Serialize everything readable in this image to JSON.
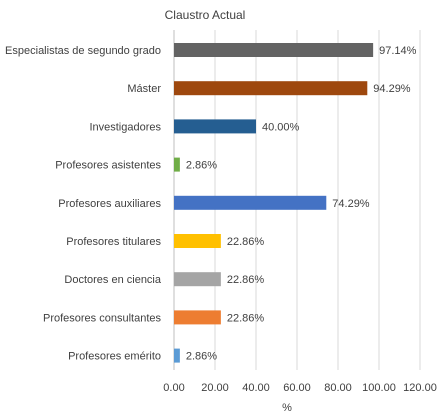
{
  "chart_data": {
    "type": "bar",
    "orientation": "horizontal",
    "title": "Claustro Actual",
    "xlabel": "%",
    "ylabel": "",
    "xlim": [
      0,
      120
    ],
    "x_ticks": [
      "0.00",
      "20.00",
      "40.00",
      "60.00",
      "80.00",
      "100.00",
      "120.00"
    ],
    "grid": true,
    "legend": "none",
    "categories": [
      "Especialistas de segundo grado",
      "Máster",
      "Investigadores",
      "Profesores asistentes",
      "Profesores auxiliares",
      "Profesores titulares",
      "Doctores en ciencia",
      "Profesores consultantes",
      "Profesores emérito"
    ],
    "values": [
      97.14,
      94.29,
      40.0,
      2.86,
      74.29,
      22.86,
      22.86,
      22.86,
      2.86
    ],
    "value_labels": [
      "97.14%",
      "94.29%",
      "40.00%",
      "2.86%",
      "74.29%",
      "22.86%",
      "22.86%",
      "22.86%",
      "2.86%"
    ],
    "colors": [
      "#636363",
      "#9E480E",
      "#255E91",
      "#70AD47",
      "#4472C4",
      "#FFC000",
      "#A5A5A5",
      "#ED7D31",
      "#5B9BD5"
    ]
  },
  "style": {
    "grid_color": "#d9d9d9",
    "text_color": "#404040",
    "axis_color": "#bfbfbf"
  }
}
